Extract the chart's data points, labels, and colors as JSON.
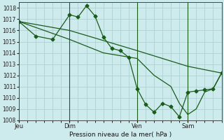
{
  "title": "Pression niveau de la mer( hPa )",
  "bg_color": "#cdeaed",
  "grid_color": "#a8cccc",
  "line_color": "#1a5c1a",
  "ylim": [
    1008,
    1018.5
  ],
  "yticks": [
    1008,
    1009,
    1010,
    1011,
    1012,
    1013,
    1014,
    1015,
    1016,
    1017,
    1018
  ],
  "xlim": [
    0,
    72
  ],
  "xtick_labels": [
    "Jeu",
    "Dim",
    "Ven",
    "Sam"
  ],
  "xtick_positions": [
    0,
    18,
    42,
    60
  ],
  "vline_positions": [
    18,
    42,
    60
  ],
  "line1_x": [
    0,
    6,
    12,
    18,
    21,
    24,
    27,
    30,
    33,
    36,
    39,
    42,
    45,
    48,
    51,
    54,
    57,
    60,
    63,
    66,
    69,
    72
  ],
  "line1_y": [
    1016.8,
    1015.5,
    1015.2,
    1017.4,
    1017.2,
    1018.2,
    1017.3,
    1015.4,
    1014.4,
    1014.2,
    1013.6,
    1010.8,
    1009.4,
    1008.7,
    1009.5,
    1009.2,
    1008.3,
    1010.5,
    1010.6,
    1010.7,
    1010.8,
    1012.2
  ],
  "line2_x": [
    0,
    18,
    42,
    60,
    72
  ],
  "line2_y": [
    1016.8,
    1016.0,
    1014.2,
    1012.8,
    1012.2
  ],
  "line3_x": [
    0,
    18,
    30,
    42,
    48,
    54,
    57,
    60,
    63,
    66,
    69,
    72
  ],
  "line3_y": [
    1016.8,
    1015.2,
    1014.0,
    1013.5,
    1012.0,
    1011.0,
    1009.5,
    1008.5,
    1009.0,
    1010.5,
    1010.8,
    1012.2
  ]
}
